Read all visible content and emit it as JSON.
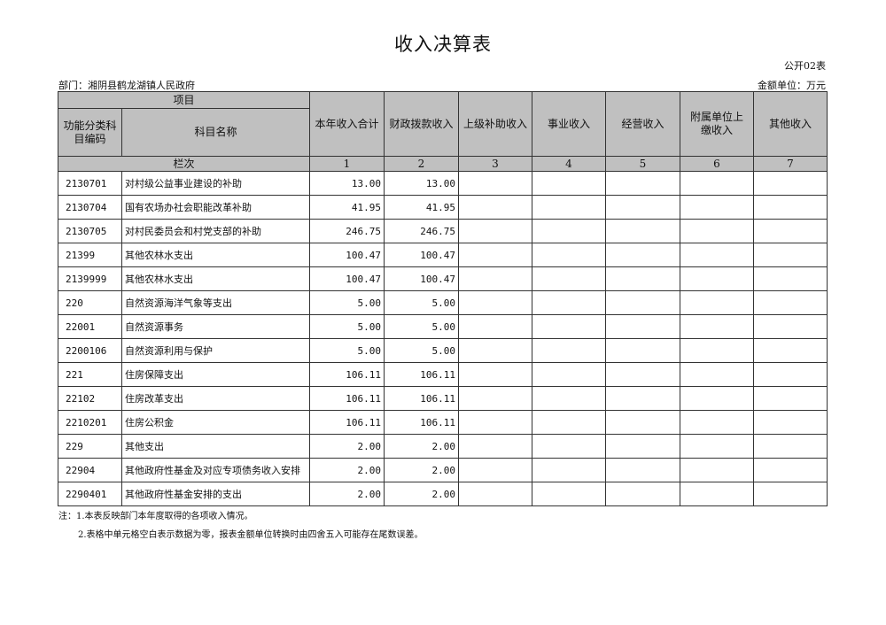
{
  "title": "收入决算表",
  "form_no": "公开02表",
  "department": "部门：湘阴县鹤龙湖镇人民政府",
  "unit": "金额单位：万元",
  "header": {
    "project": "项目",
    "code": "功能分类科目编码",
    "name": "科目名称",
    "columns": [
      "本年收入合计",
      "财政拨款收入",
      "上级补助收入",
      "事业收入",
      "经营收入",
      "附属单位上缴收入",
      "其他收入"
    ],
    "row_index_label": "栏次",
    "column_numbers": [
      "1",
      "2",
      "3",
      "4",
      "5",
      "6",
      "7"
    ]
  },
  "rows": [
    {
      "code": "2130701",
      "name": "对村级公益事业建设的补助",
      "total": "13.00",
      "fiscal": "13.00"
    },
    {
      "code": "2130704",
      "name": "国有农场办社会职能改革补助",
      "total": "41.95",
      "fiscal": "41.95"
    },
    {
      "code": "2130705",
      "name": "对村民委员会和村党支部的补助",
      "total": "246.75",
      "fiscal": "246.75"
    },
    {
      "code": "21399",
      "name": "其他农林水支出",
      "total": "100.47",
      "fiscal": "100.47"
    },
    {
      "code": "2139999",
      "name": "其他农林水支出",
      "total": "100.47",
      "fiscal": "100.47"
    },
    {
      "code": "220",
      "name": "自然资源海洋气象等支出",
      "total": "5.00",
      "fiscal": "5.00"
    },
    {
      "code": "22001",
      "name": "自然资源事务",
      "total": "5.00",
      "fiscal": "5.00"
    },
    {
      "code": "2200106",
      "name": "自然资源利用与保护",
      "total": "5.00",
      "fiscal": "5.00"
    },
    {
      "code": "221",
      "name": "住房保障支出",
      "total": "106.11",
      "fiscal": "106.11"
    },
    {
      "code": "22102",
      "name": "住房改革支出",
      "total": "106.11",
      "fiscal": "106.11"
    },
    {
      "code": "2210201",
      "name": "住房公积金",
      "total": "106.11",
      "fiscal": "106.11"
    },
    {
      "code": "229",
      "name": "其他支出",
      "total": "2.00",
      "fiscal": "2.00"
    },
    {
      "code": "22904",
      "name": "其他政府性基金及对应专项债务收入安排",
      "total": "2.00",
      "fiscal": "2.00"
    },
    {
      "code": "2290401",
      "name": "其他政府性基金安排的支出",
      "total": "2.00",
      "fiscal": "2.00"
    }
  ],
  "notes": [
    "注：1.本表反映部门本年度取得的各项收入情况。",
    "2.表格中单元格空白表示数据为零，报表金额单位转换时由四舍五入可能存在尾数误差。"
  ]
}
